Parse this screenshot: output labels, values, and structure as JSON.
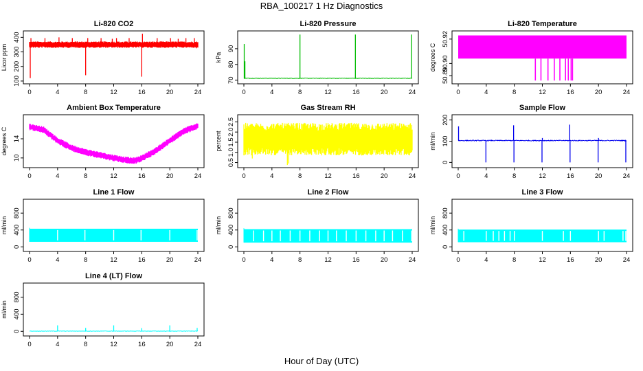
{
  "title": "RBA_100217  1 Hz Diagnostics",
  "xlabel": "Hour of Day (UTC)",
  "colors": {
    "red": "#ff0000",
    "green": "#00bb00",
    "magenta": "#ff00ff",
    "yellow": "#ffff00",
    "blue": "#0000ee",
    "cyan": "#00ffff"
  },
  "chart_data": [
    {
      "type": "line",
      "title": "Li-820 CO2",
      "ylabel": "Licor ppm",
      "xticks": [
        "0",
        "4",
        "8",
        "12",
        "16",
        "20",
        "24"
      ],
      "xlim": [
        0,
        24
      ],
      "yticks": [
        "100",
        "200",
        "300",
        "400"
      ],
      "ylim": [
        95,
        430
      ],
      "color": "red",
      "baseline": 350,
      "noise": 22,
      "style": "band",
      "spikes": [
        [
          0.1,
          120
        ],
        [
          0.2,
          395
        ],
        [
          2.2,
          395
        ],
        [
          4.2,
          400
        ],
        [
          6.1,
          395
        ],
        [
          8.0,
          140
        ],
        [
          8.3,
          395
        ],
        [
          10.2,
          395
        ],
        [
          11.8,
          390
        ],
        [
          12.4,
          395
        ],
        [
          14.2,
          395
        ],
        [
          16.0,
          130
        ],
        [
          16.1,
          425
        ],
        [
          18.2,
          395
        ],
        [
          20.1,
          395
        ],
        [
          21.2,
          390
        ],
        [
          22.3,
          395
        ],
        [
          23.5,
          395
        ],
        [
          23.8,
          325
        ]
      ]
    },
    {
      "type": "line",
      "title": "Li-820 Pressure",
      "ylabel": "kPa",
      "xticks": [
        "0",
        "4",
        "8",
        "12",
        "16",
        "20",
        "24"
      ],
      "xlim": [
        0,
        24
      ],
      "yticks": [
        "70",
        "80",
        "90"
      ],
      "ylim": [
        69,
        100
      ],
      "color": "green",
      "baseline": 71.2,
      "noise": 0.3,
      "style": "line",
      "spikes": [
        [
          0.05,
          93
        ],
        [
          0.15,
          82
        ],
        [
          8.0,
          99
        ],
        [
          15.9,
          99
        ],
        [
          23.9,
          99
        ]
      ]
    },
    {
      "type": "line",
      "title": "Li-820 Temperature",
      "ylabel": "degrees C",
      "xticks": [
        "0",
        "4",
        "8",
        "12",
        "16",
        "20",
        "24"
      ],
      "xlim": [
        0,
        24
      ],
      "yticks": [
        "50.89",
        "50.90",
        "50.92"
      ],
      "ylim": [
        50.885,
        50.925
      ],
      "color": "magenta",
      "style": "block",
      "band": [
        50.904,
        50.923
      ],
      "dips": [
        11.0,
        11.8,
        12.8,
        13.7,
        14.5,
        15.3,
        15.7,
        16.1,
        16.3
      ]
    },
    {
      "type": "line",
      "title": "Ambient Box Temperature",
      "ylabel": "degrees C",
      "xticks": [
        "0",
        "4",
        "8",
        "12",
        "16",
        "20",
        "24"
      ],
      "xlim": [
        0,
        24
      ],
      "yticks": [
        "10",
        "14"
      ],
      "ylim": [
        8.4,
        18.6
      ],
      "color": "magenta",
      "style": "curve",
      "curve": [
        [
          0,
          16.5
        ],
        [
          2,
          15.9
        ],
        [
          4,
          13.6
        ],
        [
          6,
          12.1
        ],
        [
          8,
          11.2
        ],
        [
          10,
          10.6
        ],
        [
          12,
          10.0
        ],
        [
          14,
          9.5
        ],
        [
          15,
          9.4
        ],
        [
          16,
          9.9
        ],
        [
          18,
          11.5
        ],
        [
          20,
          13.6
        ],
        [
          22,
          15.6
        ],
        [
          24,
          16.7
        ]
      ],
      "noise": 0.7
    },
    {
      "type": "line",
      "title": "Gas Stream RH",
      "ylabel": "percent",
      "xticks": [
        "0",
        "4",
        "8",
        "12",
        "16",
        "20",
        "24"
      ],
      "xlim": [
        0,
        24
      ],
      "yticks": [
        "0.5",
        "1.0",
        "1.5",
        "2.0",
        "2.5"
      ],
      "ylim": [
        0.35,
        2.75
      ],
      "color": "yellow",
      "style": "band",
      "baseline": 1.65,
      "noise": 0.8,
      "spikes": [
        [
          6.2,
          0.38
        ],
        [
          6.4,
          0.45
        ],
        [
          1.2,
          0.7
        ]
      ]
    },
    {
      "type": "line",
      "title": "Sample Flow",
      "ylabel": "ml/min",
      "xticks": [
        "0",
        "4",
        "8",
        "12",
        "16",
        "20",
        "24"
      ],
      "xlim": [
        0,
        24
      ],
      "yticks": [
        "0",
        "100",
        "200"
      ],
      "ylim": [
        -15,
        215
      ],
      "color": "blue",
      "style": "line",
      "baseline": 103,
      "noise": 4,
      "spikes": [
        [
          0.05,
          170
        ],
        [
          3.95,
          0
        ],
        [
          7.9,
          175
        ],
        [
          7.95,
          0
        ],
        [
          11.95,
          0
        ],
        [
          12.0,
          115
        ],
        [
          15.9,
          178
        ],
        [
          15.95,
          0
        ],
        [
          19.95,
          0
        ],
        [
          20.0,
          115
        ],
        [
          23.9,
          0
        ]
      ]
    },
    {
      "type": "line",
      "title": "Line 1 Flow",
      "ylabel": "ml/min",
      "xticks": [
        "0",
        "4",
        "8",
        "12",
        "16",
        "20",
        "24"
      ],
      "xlim": [
        0,
        24
      ],
      "yticks": [
        "0",
        "400",
        "800"
      ],
      "ylim": [
        -60,
        1080
      ],
      "color": "cyan",
      "style": "flow",
      "band": [
        120,
        430
      ],
      "gaps": [
        4.0,
        7.9,
        12.0,
        15.9,
        20.0,
        23.9
      ]
    },
    {
      "type": "line",
      "title": "Line 2 Flow",
      "ylabel": "ml/min",
      "xticks": [
        "0",
        "4",
        "8",
        "12",
        "16",
        "20",
        "24"
      ],
      "xlim": [
        0,
        24
      ],
      "yticks": [
        "0",
        "400",
        "800"
      ],
      "ylim": [
        -60,
        1080
      ],
      "color": "cyan",
      "style": "flow",
      "band": [
        100,
        420
      ],
      "gaps": [
        1.4,
        2.8,
        4.0,
        5.2,
        6.6,
        8.0,
        9.4,
        10.8,
        12.0,
        13.2,
        14.6,
        16.0,
        17.4,
        18.8,
        20.0,
        21.2,
        22.6,
        23.9
      ]
    },
    {
      "type": "line",
      "title": "Line 3 Flow",
      "ylabel": "ml/min",
      "xticks": [
        "0",
        "4",
        "8",
        "12",
        "16",
        "20",
        "24"
      ],
      "xlim": [
        0,
        24
      ],
      "yticks": [
        "0",
        "400",
        "800"
      ],
      "ylim": [
        -60,
        1080
      ],
      "color": "cyan",
      "style": "flow",
      "band": [
        110,
        410
      ],
      "gaps": [
        0.8,
        4.0,
        5.0,
        5.8,
        6.6,
        7.4,
        8.0,
        12.0,
        15.0,
        16.0,
        20.0,
        20.8,
        23.5,
        23.9
      ]
    },
    {
      "type": "line",
      "title": "Line 4 (LT) Flow",
      "ylabel": "ml/min",
      "xticks": [
        "0",
        "4",
        "8",
        "12",
        "16",
        "20",
        "24"
      ],
      "xlim": [
        0,
        24
      ],
      "yticks": [
        "0",
        "400",
        "800"
      ],
      "ylim": [
        -60,
        1080
      ],
      "color": "cyan",
      "style": "line",
      "baseline": 5,
      "noise": 8,
      "spikes": [
        [
          4.0,
          140
        ],
        [
          8.0,
          80
        ],
        [
          12.0,
          140
        ],
        [
          16.0,
          75
        ],
        [
          20.0,
          140
        ],
        [
          23.9,
          80
        ]
      ]
    }
  ]
}
